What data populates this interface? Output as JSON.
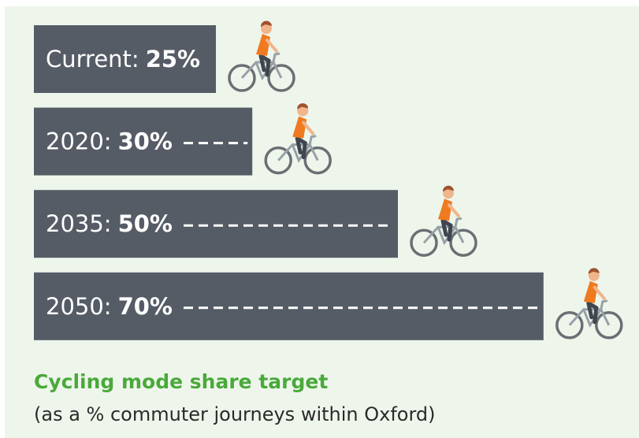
{
  "chart_data": {
    "type": "bar",
    "orientation": "horizontal",
    "title": "Cycling mode share target",
    "subtitle": "(as a % commuter journeys within Oxford)",
    "categories": [
      "Current:",
      "2020:",
      "2035:",
      "2050:"
    ],
    "values": [
      25,
      30,
      50,
      70
    ],
    "value_labels": [
      "25%",
      "30%",
      "50%",
      "70%"
    ],
    "color": "#565c66"
  }
}
